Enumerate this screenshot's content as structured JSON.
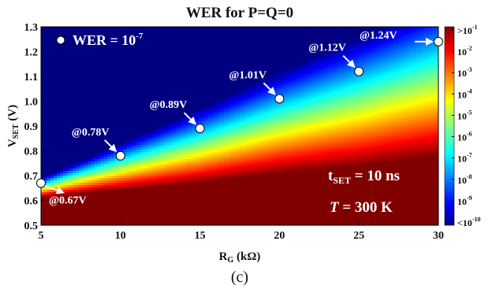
{
  "chart_data": {
    "type": "heatmap",
    "title": "WER for P=Q=0",
    "xlabel": "R",
    "xlabel_sub": "G",
    "xlabel_unit": " (kΩ)",
    "ylabel": "V",
    "ylabel_sub": "SET",
    "ylabel_unit": " (V)",
    "xlim": [
      5,
      30
    ],
    "ylim": [
      0.5,
      1.3
    ],
    "x_ticks": [
      "5",
      "10",
      "15",
      "20",
      "25",
      "30"
    ],
    "x_tick_values": [
      5,
      10,
      15,
      20,
      25,
      30
    ],
    "y_ticks": [
      "0.5",
      "0.6",
      "0.7",
      "0.8",
      "0.9",
      "1.0",
      "1.1",
      "1.2",
      "1.3"
    ],
    "y_tick_values": [
      0.5,
      0.6,
      0.7,
      0.8,
      0.9,
      1.0,
      1.1,
      1.2,
      1.3
    ],
    "colorbar": {
      "min_exp": -10,
      "max_exp": -1,
      "labels": [
        {
          "base": ">10",
          "exp": "-1"
        },
        {
          "base": "10",
          "exp": "-2"
        },
        {
          "base": "10",
          "exp": "-3"
        },
        {
          "base": "10",
          "exp": "-4"
        },
        {
          "base": "10",
          "exp": "-5"
        },
        {
          "base": "10",
          "exp": "-6"
        },
        {
          "base": "10",
          "exp": "-7"
        },
        {
          "base": "10",
          "exp": "-8"
        },
        {
          "base": "10",
          "exp": "-9"
        },
        {
          "base": "<10",
          "exp": "-10"
        }
      ]
    },
    "legend": {
      "label": "WER = 10",
      "exp": "-7",
      "placement": "top-left"
    },
    "points": [
      {
        "x": 5.0,
        "y": 0.67,
        "label": "@0.67V"
      },
      {
        "x": 10.0,
        "y": 0.78,
        "label": "@0.78V"
      },
      {
        "x": 15.0,
        "y": 0.89,
        "label": "@0.89V"
      },
      {
        "x": 20.0,
        "y": 1.01,
        "label": "@1.01V"
      },
      {
        "x": 25.0,
        "y": 1.12,
        "label": "@1.12V"
      },
      {
        "x": 30.0,
        "y": 1.24,
        "label": "@1.24V"
      }
    ],
    "conditions": {
      "t_label": "t",
      "t_sub": "SET",
      "t_value": " = 10 ns",
      "T_label": "T",
      "T_value": " = 300 K"
    },
    "panel_label": "(c)"
  },
  "colors": {
    "plot_low": "#00008b",
    "plot_high": "#8b0000",
    "point_fill": "#ffffff",
    "arrow": "#ffffff"
  }
}
